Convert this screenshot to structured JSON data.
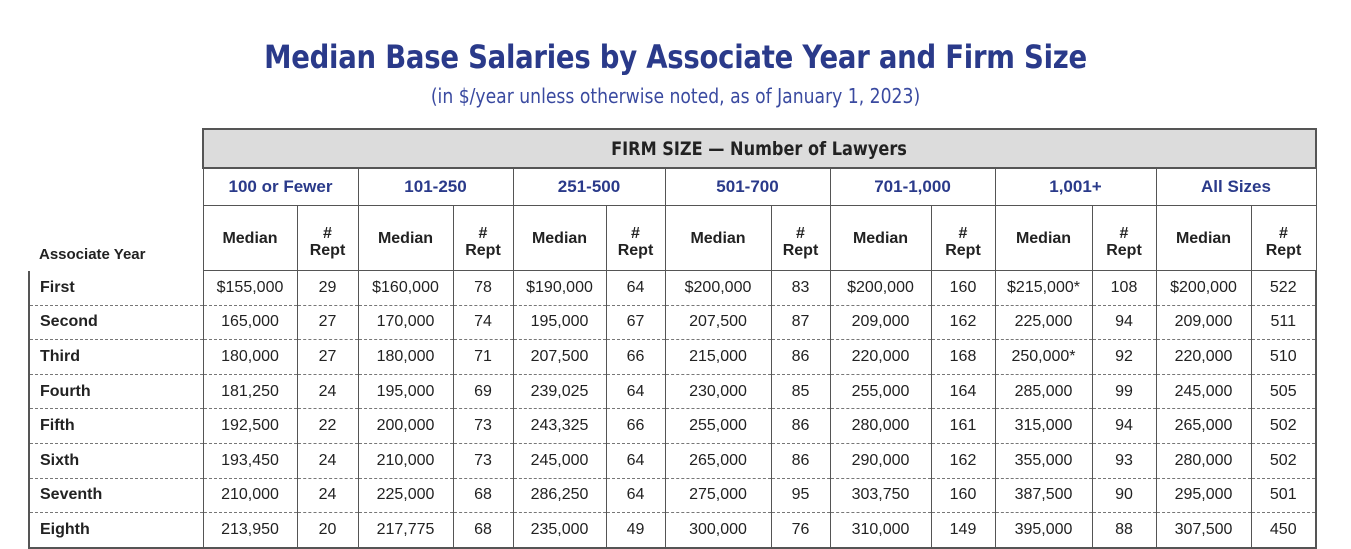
{
  "title": "Median Base Salaries by Associate Year and Firm Size",
  "subtitle": "(in $/year unless otherwise noted, as of January 1, 2023)",
  "table": {
    "super_header": "FIRM SIZE — Number of Lawyers",
    "row_header": "Associate Year",
    "groups": [
      "100 or Fewer",
      "101-250",
      "251-500",
      "501-700",
      "701-1,000",
      "1,001+",
      "All Sizes"
    ],
    "sub_headers": {
      "median": "Median",
      "rept_line1": "#",
      "rept_line2": "Rept"
    },
    "rows": [
      {
        "year": "First",
        "values": [
          "$155,000",
          "29",
          "$160,000",
          "78",
          "$190,000",
          "64",
          "$200,000",
          "83",
          "$200,000",
          "160",
          "$215,000*",
          "108",
          "$200,000",
          "522"
        ]
      },
      {
        "year": "Second",
        "values": [
          "165,000",
          "27",
          "170,000",
          "74",
          "195,000",
          "67",
          "207,500",
          "87",
          "209,000",
          "162",
          "225,000",
          "94",
          "209,000",
          "511"
        ]
      },
      {
        "year": "Third",
        "values": [
          "180,000",
          "27",
          "180,000",
          "71",
          "207,500",
          "66",
          "215,000",
          "86",
          "220,000",
          "168",
          "250,000*",
          "92",
          "220,000",
          "510"
        ]
      },
      {
        "year": "Fourth",
        "values": [
          "181,250",
          "24",
          "195,000",
          "69",
          "239,025",
          "64",
          "230,000",
          "85",
          "255,000",
          "164",
          "285,000",
          "99",
          "245,000",
          "505"
        ]
      },
      {
        "year": "Fifth",
        "values": [
          "192,500",
          "22",
          "200,000",
          "73",
          "243,325",
          "66",
          "255,000",
          "86",
          "280,000",
          "161",
          "315,000",
          "94",
          "265,000",
          "502"
        ]
      },
      {
        "year": "Sixth",
        "values": [
          "193,450",
          "24",
          "210,000",
          "73",
          "245,000",
          "64",
          "265,000",
          "86",
          "290,000",
          "162",
          "355,000",
          "93",
          "280,000",
          "502"
        ]
      },
      {
        "year": "Seventh",
        "values": [
          "210,000",
          "24",
          "225,000",
          "68",
          "286,250",
          "64",
          "275,000",
          "95",
          "303,750",
          "160",
          "387,500",
          "90",
          "295,000",
          "501"
        ]
      },
      {
        "year": "Eighth",
        "values": [
          "213,950",
          "20",
          "217,775",
          "68",
          "235,000",
          "49",
          "300,000",
          "76",
          "310,000",
          "149",
          "395,000",
          "88",
          "307,500",
          "450"
        ]
      }
    ]
  },
  "colors": {
    "title": "#2a3a8a",
    "header_bg": "#dcdcdc",
    "border": "#555555"
  }
}
